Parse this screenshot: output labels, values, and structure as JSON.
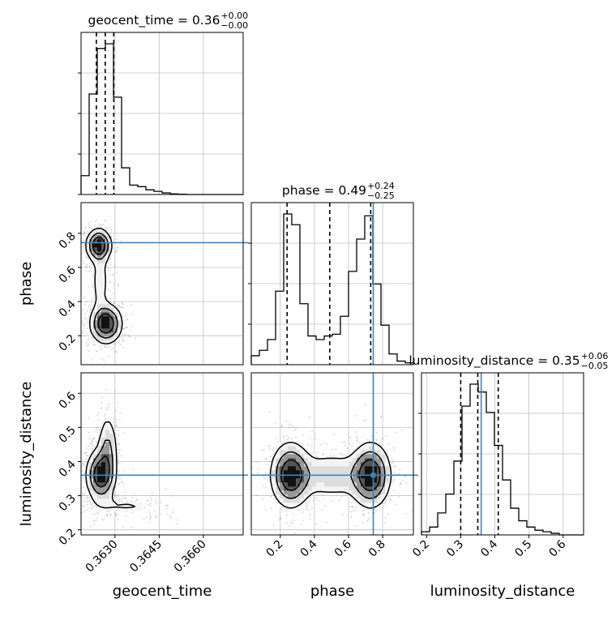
{
  "chart_data": {
    "type": "corner",
    "parameters": [
      "geocent_time",
      "phase",
      "luminosity_distance"
    ],
    "titles": [
      {
        "param": "geocent_time",
        "label": "geocent_time = 0.36",
        "plus": "+0.00",
        "minus": "−0.00"
      },
      {
        "param": "phase",
        "label": "phase = 0.49",
        "plus": "+0.24",
        "minus": "−0.25"
      },
      {
        "param": "luminosity_distance",
        "label": "luminosity_distance = 0.35",
        "plus": "+0.06",
        "minus": "−0.05"
      }
    ],
    "axis_ranges": {
      "geocent_time": [
        0.36185,
        0.36735
      ],
      "phase": [
        0.03,
        0.98
      ],
      "luminosity_distance": [
        0.185,
        0.66
      ]
    },
    "ticks": {
      "geocent_time": [
        0.363,
        0.3645,
        0.366
      ],
      "geocent_time_labels": [
        "0.3630",
        "0.3645",
        "0.3660"
      ],
      "phase": [
        0.2,
        0.4,
        0.6,
        0.8
      ],
      "phase_labels": [
        "0.2",
        "0.4",
        "0.6",
        "0.8"
      ],
      "luminosity_distance": [
        0.2,
        0.3,
        0.4,
        0.5,
        0.6
      ],
      "luminosity_distance_labels": [
        "0.2",
        "0.3",
        "0.4",
        "0.5",
        "0.6"
      ]
    },
    "quantiles": {
      "geocent_time": [
        0.36237,
        0.36267,
        0.36296
      ],
      "phase": [
        0.24,
        0.49,
        0.73
      ],
      "luminosity_distance": [
        0.3,
        0.35,
        0.41
      ]
    },
    "injection": {
      "geocent_time": null,
      "phase": 0.745,
      "luminosity_distance": 0.36
    },
    "histograms": {
      "geocent_time": {
        "edges": [
          0.36185,
          0.362125,
          0.3624,
          0.362675,
          0.36295,
          0.363225,
          0.3635,
          0.363775,
          0.36405,
          0.364325,
          0.3646,
          0.364875,
          0.36515,
          0.365425,
          0.3657,
          0.365975,
          0.36625,
          0.366525,
          0.3668,
          0.367075,
          0.36735
        ],
        "counts": [
          0.12,
          0.64,
          0.93,
          0.96,
          0.62,
          0.17,
          0.06,
          0.05,
          0.03,
          0.02,
          0.01,
          0.004,
          0.002,
          0,
          0,
          0,
          0,
          0,
          0,
          0
        ]
      },
      "phase": {
        "edges": [
          0.03,
          0.0775,
          0.125,
          0.1725,
          0.22,
          0.2675,
          0.315,
          0.3625,
          0.41,
          0.4575,
          0.505,
          0.5525,
          0.6,
          0.6475,
          0.695,
          0.7425,
          0.79,
          0.8375,
          0.885,
          0.9325,
          0.98
        ],
        "counts": [
          0.05,
          0.08,
          0.14,
          0.41,
          0.84,
          0.78,
          0.34,
          0.16,
          0.14,
          0.16,
          0.17,
          0.27,
          0.52,
          0.7,
          0.83,
          0.45,
          0.22,
          0.06,
          0.02,
          0.01
        ]
      },
      "luminosity_distance": {
        "edges": [
          0.185,
          0.20875,
          0.2325,
          0.25625,
          0.28,
          0.30375,
          0.3275,
          0.35125,
          0.375,
          0.39875,
          0.4225,
          0.44625,
          0.47,
          0.49375,
          0.5175,
          0.54125,
          0.565,
          0.58875,
          0.6125,
          0.63625,
          0.66
        ],
        "counts": [
          0.02,
          0.05,
          0.14,
          0.26,
          0.47,
          0.82,
          0.96,
          0.91,
          0.78,
          0.57,
          0.35,
          0.17,
          0.09,
          0.05,
          0.03,
          0.02,
          0.01,
          0,
          0,
          0
        ]
      }
    },
    "pairs": [
      {
        "x": "geocent_time",
        "y": "phase",
        "modes": [
          {
            "x": 0.36245,
            "y": 0.73,
            "sx": 0.00022,
            "sy": 0.05,
            "w": 1.0
          },
          {
            "x": 0.3627,
            "y": 0.27,
            "sx": 0.00028,
            "sy": 0.06,
            "w": 1.0
          },
          {
            "x": 0.3625,
            "y": 0.52,
            "sx": 0.00018,
            "sy": 0.12,
            "w": 0.25
          }
        ]
      },
      {
        "x": "geocent_time",
        "y": "luminosity_distance",
        "modes": [
          {
            "x": 0.3625,
            "y": 0.36,
            "sx": 0.00025,
            "sy": 0.04,
            "w": 1.0
          },
          {
            "x": 0.36275,
            "y": 0.43,
            "sx": 0.00018,
            "sy": 0.06,
            "w": 0.5
          },
          {
            "x": 0.3634,
            "y": 0.27,
            "sx": 0.0008,
            "sy": 0.02,
            "w": 0.18
          }
        ]
      },
      {
        "x": "phase",
        "y": "luminosity_distance",
        "modes": [
          {
            "x": 0.26,
            "y": 0.36,
            "sx": 0.06,
            "sy": 0.05,
            "w": 1.0
          },
          {
            "x": 0.73,
            "y": 0.36,
            "sx": 0.06,
            "sy": 0.05,
            "w": 1.0
          },
          {
            "x": 0.5,
            "y": 0.36,
            "sx": 0.14,
            "sy": 0.04,
            "w": 0.35
          }
        ]
      }
    ],
    "colors": {
      "truth": "#4682b4",
      "grid": "#c0c0c0",
      "quantile": "#000000",
      "points": "#9a9a9a"
    },
    "grid": true,
    "legend": "none"
  }
}
